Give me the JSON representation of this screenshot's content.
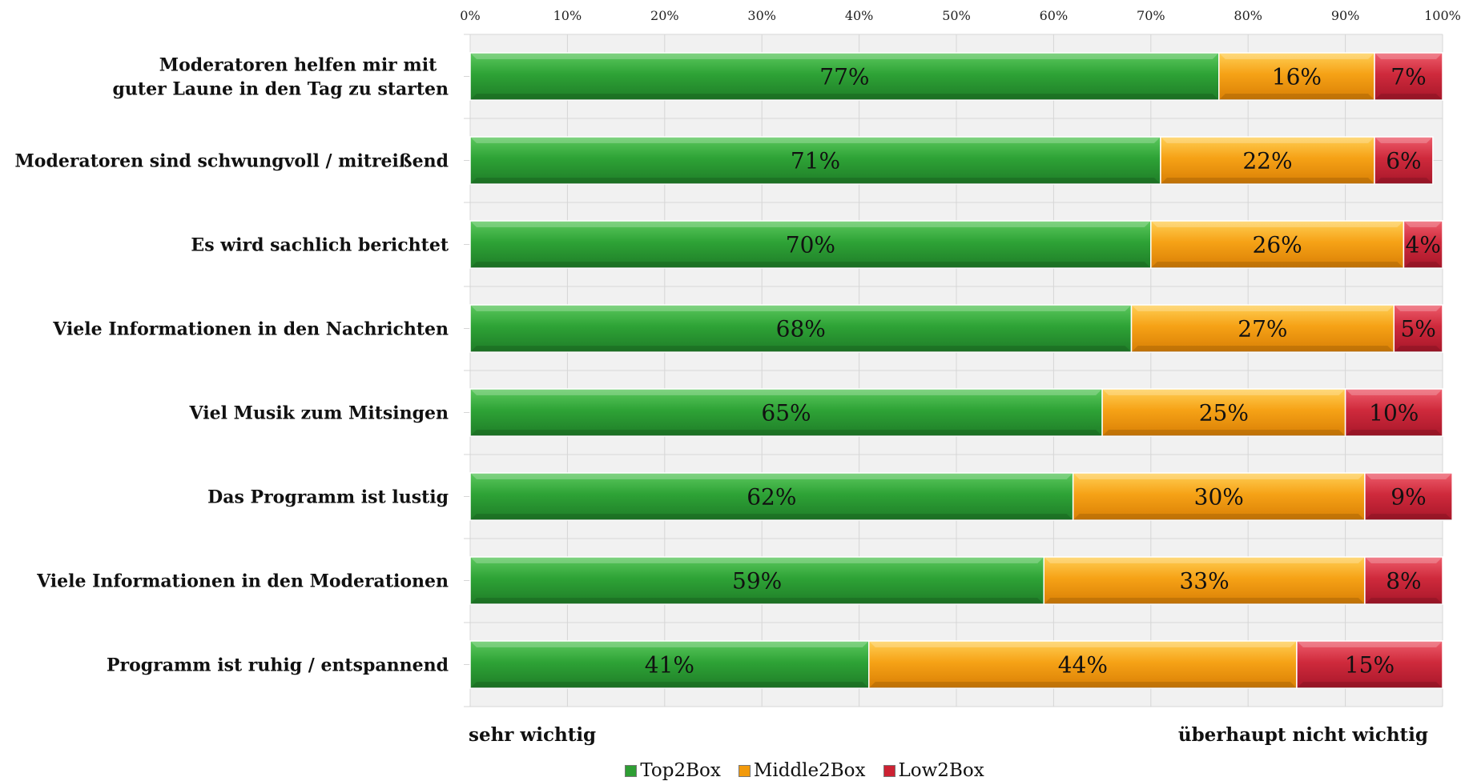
{
  "chart_data": {
    "type": "bar",
    "orientation": "horizontal",
    "stacked": true,
    "categories": [
      [
        "Moderatoren helfen mir mit",
        "guter Laune in den Tag zu starten"
      ],
      [
        "Moderatoren sind schwungvoll / mitreißend"
      ],
      [
        "Es wird sachlich berichtet"
      ],
      [
        "Viele Informationen in den Nachrichten"
      ],
      [
        "Viel Musik zum Mitsingen"
      ],
      [
        "Das Programm ist lustig"
      ],
      [
        "Viele Informationen in den Moderationen"
      ],
      [
        "Programm ist ruhig / entspannend"
      ]
    ],
    "series": [
      {
        "name": "Top2Box",
        "color": "#2e9e34",
        "values": [
          77,
          71,
          70,
          68,
          65,
          62,
          59,
          41
        ],
        "labels": [
          "77%",
          "71%",
          "70%",
          "68%",
          "65%",
          "62%",
          "59%",
          "41%"
        ]
      },
      {
        "name": "Middle2Box",
        "color": "#f29a0c",
        "values": [
          16,
          22,
          26,
          27,
          25,
          30,
          33,
          44
        ],
        "labels": [
          "16%",
          "22%",
          "26%",
          "27%",
          "25%",
          "30%",
          "33%",
          "44%"
        ]
      },
      {
        "name": "Low2Box",
        "color": "#cc2233",
        "values": [
          7,
          6,
          4,
          5,
          10,
          9,
          8,
          15
        ],
        "labels": [
          "7%",
          "6%",
          "4%",
          "5%",
          "10%",
          "9%",
          "8%",
          "15%"
        ]
      }
    ],
    "xlim": [
      0,
      100
    ],
    "xticks": [
      "0%",
      "10%",
      "20%",
      "30%",
      "40%",
      "50%",
      "60%",
      "70%",
      "80%",
      "90%",
      "100%"
    ],
    "xaxis_position": "top",
    "grid": true,
    "legend_position": "bottom",
    "left_end_label": "sehr wichtig",
    "right_end_label": "überhaupt nicht wichtig"
  }
}
